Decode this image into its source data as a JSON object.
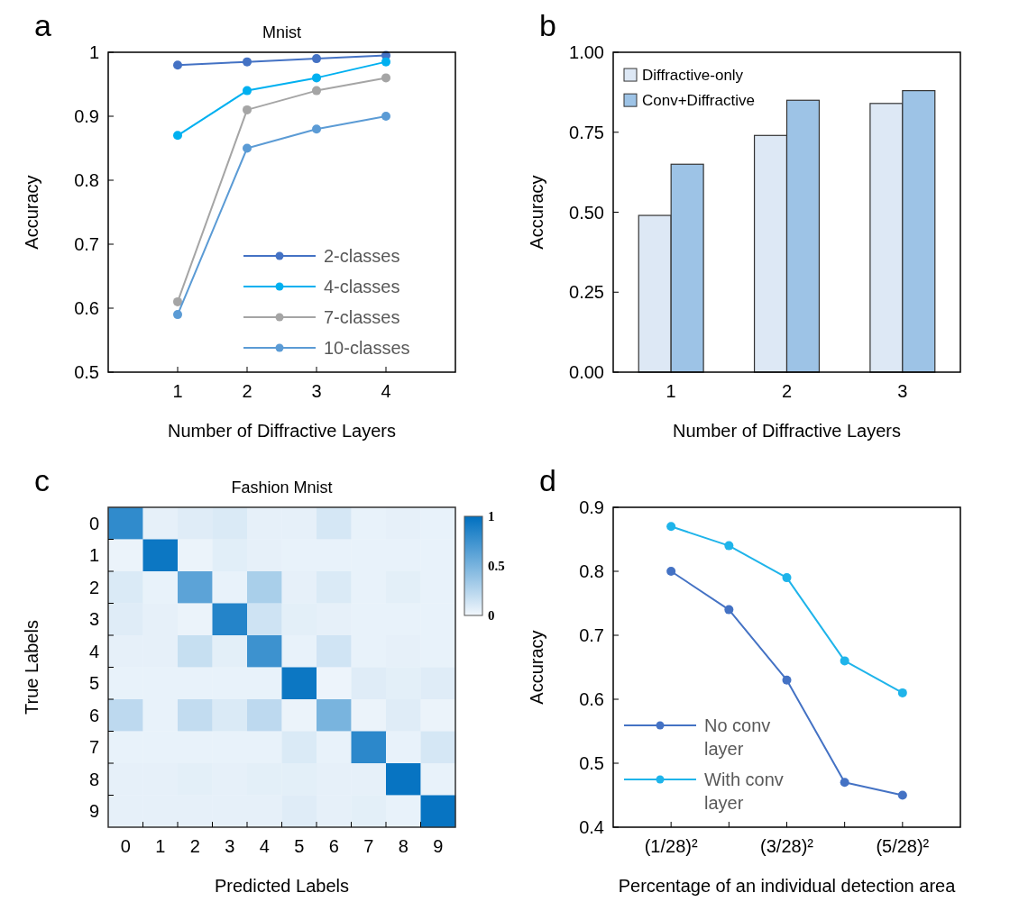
{
  "chart_data": [
    {
      "type": "line",
      "title": "Mnist",
      "annotations": [
        "a"
      ],
      "xlabel": "Number of Diffractive Layers",
      "ylabel": "Accuracy",
      "categories": [
        "1",
        "2",
        "3",
        "4"
      ],
      "ylim": [
        0.5,
        1
      ],
      "yticks": [
        0.5,
        0.6,
        0.7,
        0.8,
        0.9,
        1
      ],
      "grid": false,
      "legend": "bottom right",
      "marker": "circle",
      "line_style": "solid",
      "series": [
        {
          "name": "2-classes",
          "color": "#4472c4",
          "values": [
            0.98,
            0.985,
            0.99,
            0.995
          ]
        },
        {
          "name": "4-classes",
          "color": "#00b0f0",
          "values": [
            0.87,
            0.94,
            0.96,
            0.985
          ]
        },
        {
          "name": "7-classes",
          "color": "#a5a5a5",
          "values": [
            0.61,
            0.91,
            0.94,
            0.96
          ]
        },
        {
          "name": "10-classes",
          "color": "#5b9bd5",
          "values": [
            0.59,
            0.85,
            0.88,
            0.9
          ]
        }
      ]
    },
    {
      "type": "bar",
      "annotations": [
        "b"
      ],
      "xlabel": "Number of Diffractive Layers",
      "ylabel": "Accuracy",
      "categories": [
        "1",
        "2",
        "3"
      ],
      "ylim": [
        0,
        1
      ],
      "yticks": [
        {
          "value": 0,
          "label": "0.00"
        },
        {
          "value": 0.25,
          "label": "0.25"
        },
        {
          "value": 0.5,
          "label": "0.50"
        },
        {
          "value": 0.75,
          "label": "0.75"
        },
        {
          "value": 1,
          "label": "1.00"
        }
      ],
      "grid": false,
      "legend": "top left",
      "series": [
        {
          "name": "Diffractive-only",
          "color": "#dde8f5",
          "values": [
            0.49,
            0.74,
            0.84
          ]
        },
        {
          "name": "Conv+Diffractive",
          "color": "#9dc3e6",
          "values": [
            0.65,
            0.85,
            0.88
          ]
        }
      ]
    },
    {
      "type": "heatmap",
      "title": "Fashion Mnist",
      "annotations": [
        "c"
      ],
      "xlabel": "Predicted Labels",
      "ylabel": "True Labels",
      "categories": [
        "0",
        "1",
        "2",
        "3",
        "4",
        "5",
        "6",
        "7",
        "8",
        "9"
      ],
      "y_categories": [
        "0",
        "1",
        "2",
        "3",
        "4",
        "5",
        "6",
        "7",
        "8",
        "9"
      ],
      "clim": [
        0,
        1
      ],
      "cticks": [
        0,
        0.5,
        1
      ],
      "cells": [
        [
          0.8,
          0.05,
          0.08,
          0.1,
          0.05,
          0.05,
          0.12,
          0.04,
          0.05,
          0.04
        ],
        [
          0.03,
          0.95,
          0.03,
          0.07,
          0.05,
          0.04,
          0.04,
          0.04,
          0.04,
          0.04
        ],
        [
          0.1,
          0.04,
          0.62,
          0.04,
          0.3,
          0.05,
          0.1,
          0.04,
          0.06,
          0.04
        ],
        [
          0.08,
          0.05,
          0.03,
          0.85,
          0.15,
          0.06,
          0.05,
          0.04,
          0.04,
          0.04
        ],
        [
          0.05,
          0.05,
          0.18,
          0.06,
          0.75,
          0.04,
          0.14,
          0.04,
          0.05,
          0.04
        ],
        [
          0.04,
          0.04,
          0.04,
          0.04,
          0.04,
          0.95,
          0.02,
          0.08,
          0.06,
          0.08
        ],
        [
          0.22,
          0.04,
          0.2,
          0.1,
          0.22,
          0.03,
          0.5,
          0.03,
          0.08,
          0.03
        ],
        [
          0.04,
          0.04,
          0.04,
          0.04,
          0.04,
          0.1,
          0.04,
          0.82,
          0.04,
          0.12
        ],
        [
          0.05,
          0.05,
          0.06,
          0.05,
          0.06,
          0.06,
          0.05,
          0.05,
          0.97,
          0.04
        ],
        [
          0.05,
          0.05,
          0.05,
          0.05,
          0.05,
          0.08,
          0.05,
          0.06,
          0.04,
          0.97
        ]
      ]
    },
    {
      "type": "line",
      "annotations": [
        "d"
      ],
      "xlabel": "Percentage of an individual detection area",
      "ylabel": "Accuracy",
      "categories": [
        "(1/28)²",
        null,
        "(3/28)²",
        null,
        "(5/28)²"
      ],
      "ylim": [
        0.4,
        0.9
      ],
      "yticks": [
        0.4,
        0.5,
        0.6,
        0.7,
        0.8,
        0.9
      ],
      "grid": false,
      "legend": "bottom left",
      "marker": "circle",
      "line_style": "solid",
      "series": [
        {
          "name": "No conv layer",
          "color": "#4472c4",
          "values": [
            0.8,
            0.74,
            0.63,
            0.47,
            0.45
          ]
        },
        {
          "name": "With conv layer",
          "color": "#1fb4ea",
          "values": [
            0.87,
            0.84,
            0.79,
            0.66,
            0.61
          ]
        }
      ]
    }
  ]
}
